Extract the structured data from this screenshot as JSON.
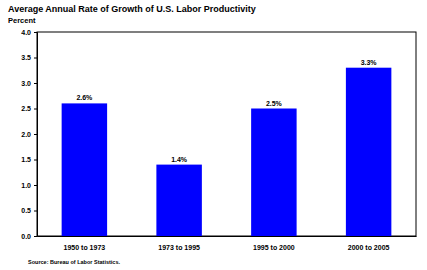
{
  "chart_data": {
    "type": "bar",
    "title": "Average Annual Rate of Growth of U.S. Labor Productivity",
    "y_label": "Percent",
    "source": "Source: Bureau of Labor Statistics.",
    "categories": [
      "1950 to 1973",
      "1973 to 1995",
      "1995 to 2000",
      "2000 to 2005"
    ],
    "values": [
      2.6,
      1.4,
      2.5,
      3.3
    ],
    "value_labels": [
      "2.6%",
      "1.4%",
      "2.5%",
      "3.3%"
    ],
    "data_labels": true,
    "color": "#0000ff",
    "ylim": [
      0,
      4
    ],
    "yticks": [
      {
        "value": 0,
        "label": "0.0"
      },
      0.5,
      {
        "value": 1,
        "label": "1.0"
      },
      1.5,
      {
        "value": 2,
        "label": "2.0"
      },
      2.5,
      {
        "value": 3,
        "label": "3.0"
      },
      3.5,
      {
        "value": 4,
        "label": "4.0"
      }
    ],
    "grid": false
  }
}
